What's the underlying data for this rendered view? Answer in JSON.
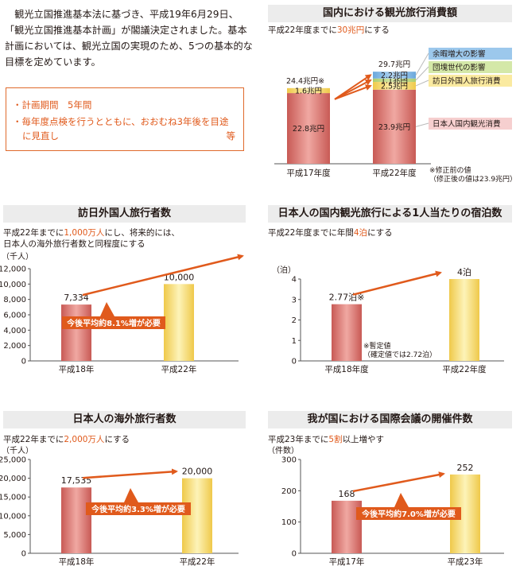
{
  "intro": {
    "text": "観光立国推進基本法に基づき、平成19年6月29日、「観光立国推進基本計画」が閣議決定されました。基本計画においては、観光立国の実現のため、5つの基本的な目標を定めています。"
  },
  "plan_box": {
    "item1": "・計画期間　5年間",
    "item2_line1": "・毎年度点検を行うとともに、おおむね3年後を目途",
    "item2_line2": "に見直し",
    "item2_suffix": "等"
  },
  "colors": {
    "accent": "#e05a1c",
    "red_bar": "#d4706a",
    "yellow_bar": "#f5dd6a",
    "light_yellow": "#fbf0b0",
    "blue_segment": "#8fc0e8",
    "green_segment": "#c4dd8e",
    "pink_label": "#f6cfcf",
    "title_bg": "#ececec"
  },
  "panels": {
    "spending": {
      "title": "国内における観光旅行消費額",
      "subtitle_pre": "平成22年度までに",
      "subtitle_hl": "30兆円",
      "subtitle_post": "にする",
      "note_line1": "※修正前の値",
      "note_line2": "（修正後の値は23.9兆円）"
    },
    "visitors": {
      "title": "訪日外国人旅行者数",
      "subtitle_pre": "平成22年までに",
      "subtitle_hl": "1,000万人",
      "subtitle_post": "にし、将来的には、",
      "subtitle_line2": "日本人の海外旅行者数と同程度にする"
    },
    "nights": {
      "title": "日本人の国内観光旅行による1人当たりの宿泊数",
      "subtitle_pre": "平成22年度までに年間",
      "subtitle_hl": "4泊",
      "subtitle_post": "にする",
      "note_line1": "※暫定値",
      "note_line2": "（確定値では2.72泊）"
    },
    "outbound": {
      "title": "日本人の海外旅行者数",
      "subtitle_pre": "平成22年までに",
      "subtitle_hl": "2,000万人",
      "subtitle_post": "にする"
    },
    "conferences": {
      "title": "我が国における国際会議の開催件数",
      "subtitle_pre": "平成23年までに",
      "subtitle_hl": "5割",
      "subtitle_post": "以上増やす"
    }
  },
  "chart_data": [
    {
      "id": "spending",
      "type": "bar",
      "stacked": true,
      "categories": [
        "平成17年度",
        "平成22年度"
      ],
      "unit": "兆円",
      "totals_labels": [
        "24.4兆円※",
        "29.7兆円"
      ],
      "totals": [
        24.4,
        29.7
      ],
      "series": [
        {
          "name": "日本人国内観光消費",
          "values": [
            22.8,
            23.9
          ],
          "labels": [
            "22.8兆円",
            "23.9兆円"
          ],
          "color": "#d4706a"
        },
        {
          "name": "訪日外国人旅行消費",
          "values": [
            1.6,
            2.5
          ],
          "labels": [
            "1.6兆円",
            "2.5兆円"
          ],
          "color": "#f5dd6a"
        },
        {
          "name": "団塊世代の影響",
          "values": [
            0,
            1.1
          ],
          "labels": [
            "",
            "1.1兆円"
          ],
          "color": "#c4dd8e"
        },
        {
          "name": "余暇増大の影響",
          "values": [
            0,
            2.2
          ],
          "labels": [
            "",
            "2.2兆円"
          ],
          "color": "#8fc0e8"
        }
      ]
    },
    {
      "id": "visitors",
      "type": "bar",
      "categories": [
        "平成18年",
        "平成22年"
      ],
      "values": [
        7334,
        10000
      ],
      "value_labels": [
        "7,334",
        "10,000"
      ],
      "ylabel": "（千人）",
      "ylim": [
        0,
        12000
      ],
      "yticks": [
        0,
        2000,
        4000,
        6000,
        8000,
        10000,
        12000
      ],
      "ytick_labels": [
        "0",
        "2,000",
        "4,000",
        "6,000",
        "8,000",
        "10,000",
        "12,000"
      ],
      "annotation": "今後平均約8.1%増が必要"
    },
    {
      "id": "nights",
      "type": "bar",
      "categories": [
        "平成18年度",
        "平成22年度"
      ],
      "values": [
        2.77,
        4
      ],
      "value_labels": [
        "2.77泊※",
        "4泊"
      ],
      "ylabel": "（泊）",
      "ylim": [
        0,
        4
      ],
      "yticks": [
        0,
        1,
        2,
        3,
        4
      ],
      "ytick_labels": [
        "0",
        "1",
        "2",
        "3",
        "4"
      ]
    },
    {
      "id": "outbound",
      "type": "bar",
      "categories": [
        "平成18年",
        "平成22年"
      ],
      "values": [
        17535,
        20000
      ],
      "value_labels": [
        "17,535",
        "20,000"
      ],
      "ylabel": "（千人）",
      "ylim": [
        0,
        25000
      ],
      "yticks": [
        0,
        5000,
        10000,
        15000,
        20000,
        25000
      ],
      "ytick_labels": [
        "0",
        "5,000",
        "10,000",
        "15,000",
        "20,000",
        "25,000"
      ],
      "annotation": "今後平均約3.3%増が必要"
    },
    {
      "id": "conferences",
      "type": "bar",
      "categories": [
        "平成17年",
        "平成23年"
      ],
      "values": [
        168,
        252
      ],
      "value_labels": [
        "168",
        "252"
      ],
      "ylabel": "（件数）",
      "ylim": [
        0,
        300
      ],
      "yticks": [
        0,
        100,
        200,
        300
      ],
      "ytick_labels": [
        "0",
        "100",
        "200",
        "300"
      ],
      "annotation": "今後平均約7.0%増が必要"
    }
  ]
}
